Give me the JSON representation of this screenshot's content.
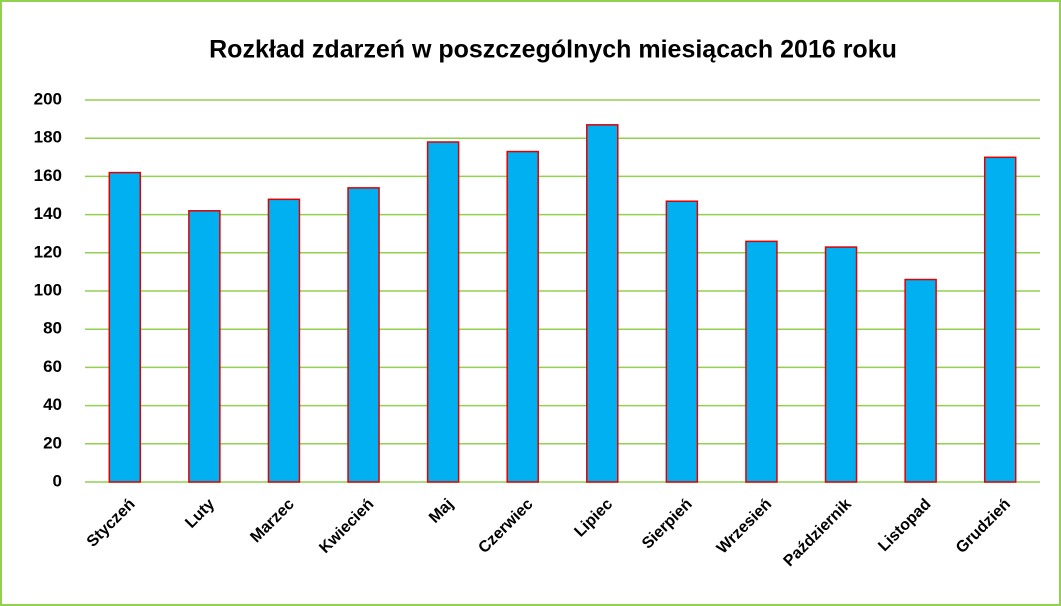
{
  "chart_data": {
    "type": "bar",
    "title": "Rozkład zdarzeń w poszczególnych miesiącach 2016 roku",
    "categories": [
      "Styczeń",
      "Luty",
      "Marzec",
      "Kwiecień",
      "Maj",
      "Czerwiec",
      "Lipiec",
      "Sierpień",
      "Wrzesień",
      "Październik",
      "Listopad",
      "Grudzień"
    ],
    "values": [
      162,
      142,
      148,
      154,
      178,
      173,
      187,
      147,
      126,
      123,
      106,
      170
    ],
    "color": "#00b0f0",
    "edge_color": "#e00000",
    "grid_color": "#92d050",
    "ylim": [
      0,
      200
    ],
    "yticks": [
      0,
      20,
      40,
      60,
      80,
      100,
      120,
      140,
      160,
      180,
      200
    ],
    "grid": true
  }
}
